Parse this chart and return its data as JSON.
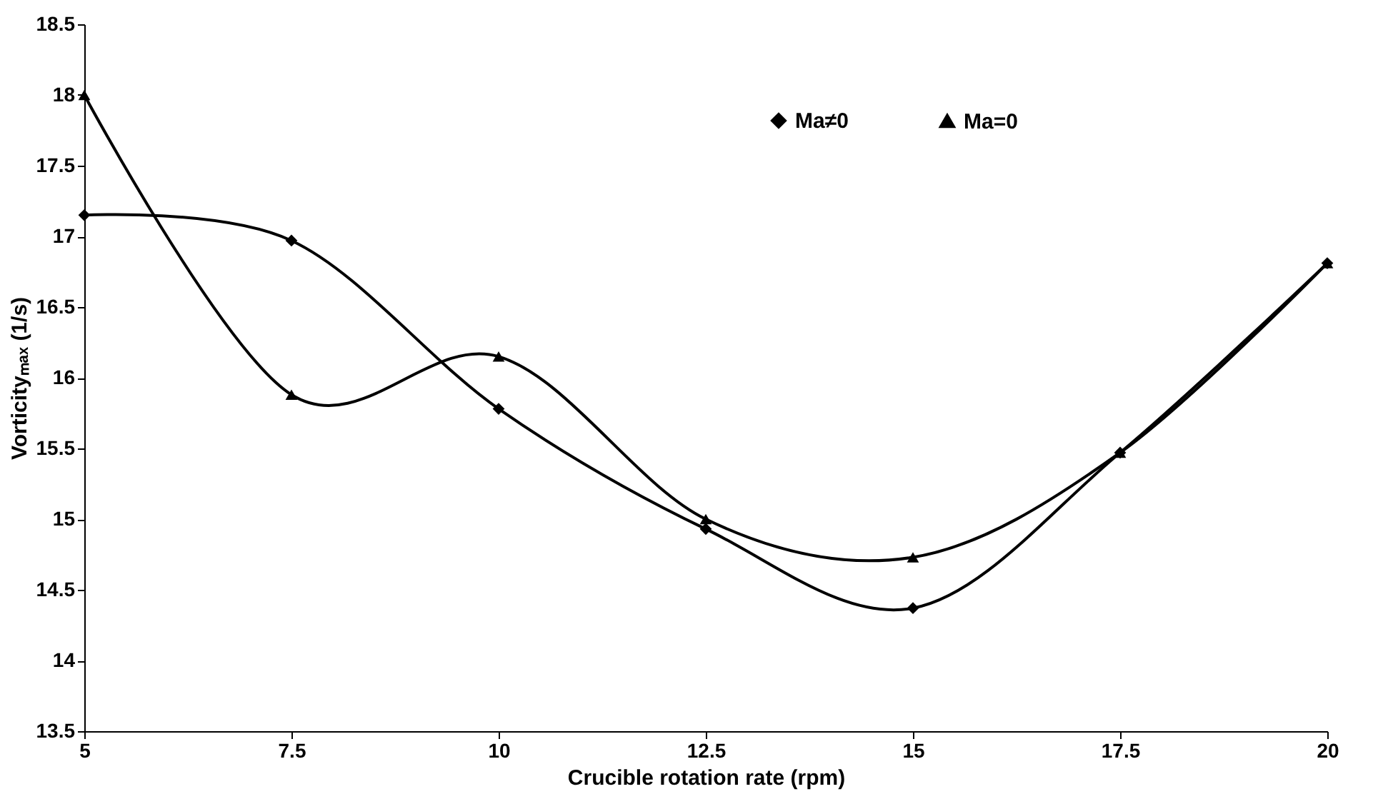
{
  "chart_data": {
    "type": "line",
    "xlabel": "Crucible rotation rate (rpm)",
    "ylabel": "Vorticityₘₐₓ (1/s)",
    "x": [
      5,
      7.5,
      10,
      12.5,
      15,
      17.5,
      20
    ],
    "series": [
      {
        "name": "Ma≠0",
        "color": "#000000",
        "marker": "diamond",
        "values": [
          17.15,
          16.97,
          15.78,
          14.93,
          14.37,
          15.47,
          16.81
        ]
      },
      {
        "name": "Ma=0",
        "color": "#000000",
        "marker": "triangle",
        "values": [
          18.0,
          15.88,
          16.15,
          15.0,
          14.73,
          15.47,
          16.81
        ]
      }
    ],
    "xlim": [
      5,
      20
    ],
    "xticks": [
      5,
      7.5,
      10,
      12.5,
      15,
      17.5,
      20
    ],
    "ylim": [
      13.5,
      18.5
    ],
    "yticks": [
      13.5,
      14,
      14.5,
      15,
      15.5,
      16,
      16.5,
      17,
      17.5,
      18,
      18.5
    ],
    "grid": false,
    "legend": "top right",
    "line_style": "solid"
  }
}
